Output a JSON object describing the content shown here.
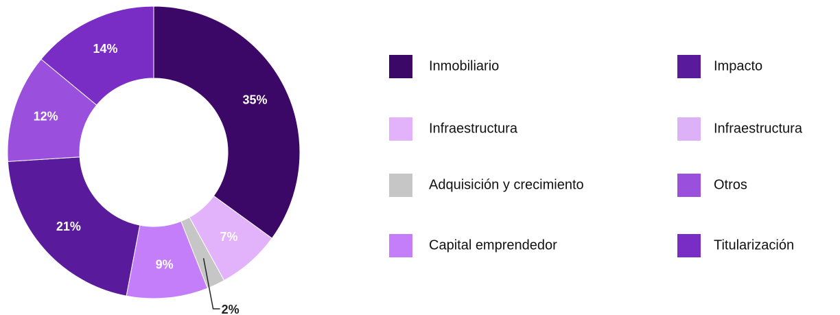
{
  "chart_data": {
    "type": "pie",
    "donut": true,
    "categories": [
      "Inmobiliario",
      "Infraestructura",
      "Adquisición y crecimiento",
      "Capital emprendedor",
      "Impacto",
      "Infraestructura",
      "Otros",
      "Titularización"
    ],
    "values": [
      35,
      7,
      2,
      9,
      21,
      null,
      12,
      14
    ],
    "value_labels": [
      "35%",
      "7%",
      "2%",
      "9%",
      "21%",
      null,
      "12%",
      "14%"
    ],
    "colors": [
      "#3c0868",
      "#e2b2fb",
      "#c6c6c6",
      "#c57efa",
      "#5a1a9c",
      "#ddb1f8",
      "#9a50dc",
      "#7a2dc5"
    ]
  }
}
